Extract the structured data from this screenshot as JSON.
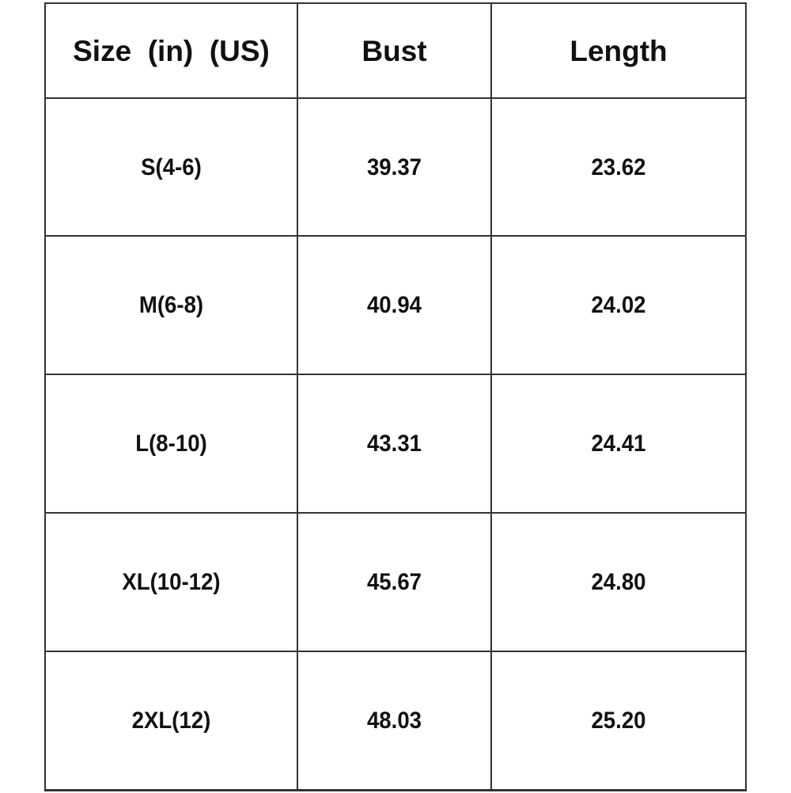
{
  "table": {
    "headers": [
      "Size  (in)  (US)",
      "Bust",
      "Length"
    ],
    "rows": [
      [
        "S(4-6)",
        "39.37",
        "23.62"
      ],
      [
        "M(6-8)",
        "40.94",
        "24.02"
      ],
      [
        "L(8-10)",
        "43.31",
        "24.41"
      ],
      [
        "XL(10-12)",
        "45.67",
        "24.80"
      ],
      [
        "2XL(12)",
        "48.03",
        "25.20"
      ]
    ]
  }
}
